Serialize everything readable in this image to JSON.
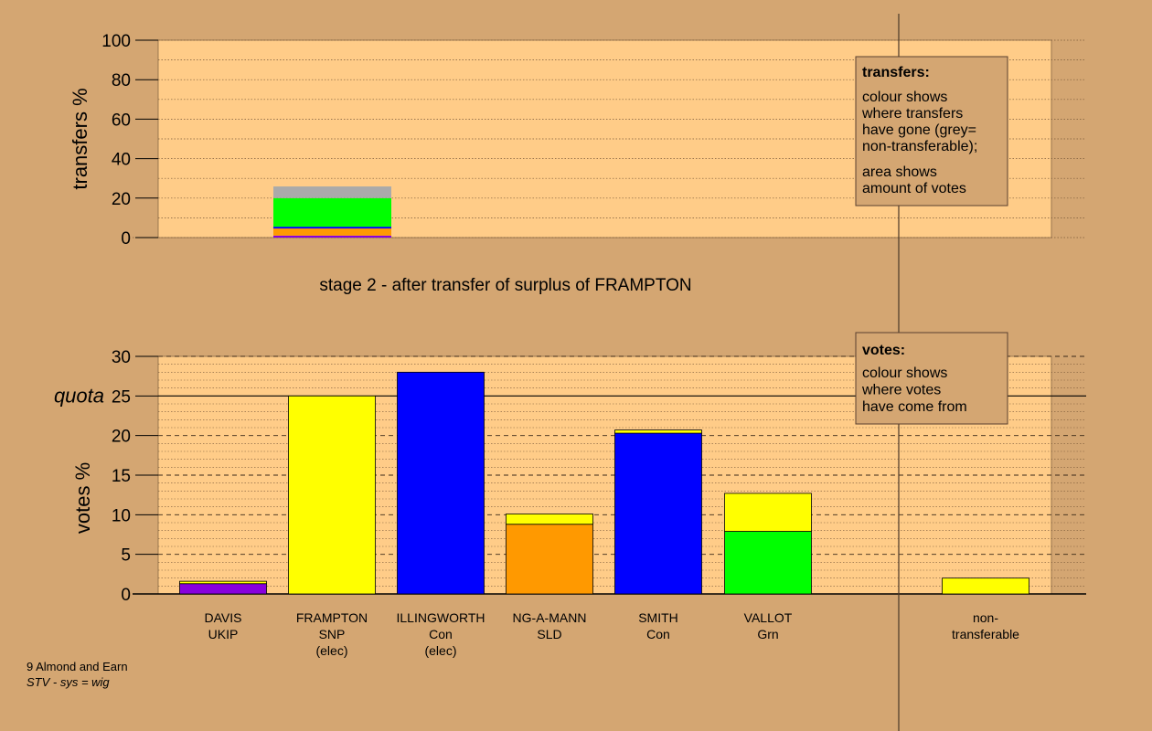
{
  "colors": {
    "background": "#d4a672",
    "panel": "#ffcc88",
    "ukip": "#8800dd",
    "snp": "#ffff00",
    "con": "#0000ff",
    "sld": "#ff9900",
    "grn": "#00ff00",
    "nontransferable": "#aaaaaa"
  },
  "chart_data": [
    {
      "type": "bar",
      "ylabel": "transfers %",
      "ylim": [
        0,
        100
      ],
      "yticks": [
        0,
        20,
        40,
        60,
        80,
        100
      ],
      "grid": "dotted",
      "bars": [
        {
          "segments": [
            {
              "party": "ukip",
              "value": 1.0
            },
            {
              "party": "sld",
              "value": 3.6
            },
            {
              "party": "con",
              "value": 0.9
            },
            {
              "party": "grn",
              "value": 14.5
            },
            {
              "party": "nontransferable",
              "value": 5.9
            }
          ]
        }
      ],
      "legend": {
        "title": "transfers:",
        "lines_1": [
          "colour shows",
          "where transfers",
          "have gone (grey=",
          "non-transferable);"
        ],
        "lines_2": [
          "area shows",
          "amount of votes"
        ]
      }
    },
    {
      "type": "bar",
      "title": "stage 2 - after transfer of surplus of FRAMPTON",
      "ylabel": "votes %",
      "ylim": [
        0,
        30
      ],
      "yticks": [
        0,
        5,
        10,
        15,
        20,
        25,
        30
      ],
      "quota": 25,
      "quota_label": "quota",
      "grid": "dotted",
      "categories": [
        {
          "lines": [
            "DAVIS",
            "UKIP"
          ],
          "segments": [
            {
              "party": "ukip",
              "value": 1.3
            },
            {
              "party": "snp",
              "value": 0.3
            }
          ]
        },
        {
          "lines": [
            "FRAMPTON",
            "SNP",
            "(elec)"
          ],
          "segments": [
            {
              "party": "snp",
              "value": 25.0
            }
          ]
        },
        {
          "lines": [
            "ILLINGWORTH",
            "Con",
            "(elec)"
          ],
          "segments": [
            {
              "party": "con",
              "value": 28.0
            }
          ]
        },
        {
          "lines": [
            "NG-A-MANN",
            "SLD"
          ],
          "segments": [
            {
              "party": "sld",
              "value": 8.8
            },
            {
              "party": "snp",
              "value": 1.3
            }
          ]
        },
        {
          "lines": [
            "SMITH",
            "Con"
          ],
          "segments": [
            {
              "party": "con",
              "value": 20.3
            },
            {
              "party": "snp",
              "value": 0.4
            }
          ]
        },
        {
          "lines": [
            "VALLOT",
            "Grn"
          ],
          "segments": [
            {
              "party": "grn",
              "value": 7.9
            },
            {
              "party": "snp",
              "value": 4.8
            }
          ]
        },
        {
          "lines": [
            "non-",
            "transferable"
          ],
          "segments": [
            {
              "party": "snp",
              "value": 2.0
            }
          ]
        }
      ],
      "legend": {
        "title": "votes:",
        "lines": [
          "colour shows",
          "where votes",
          "have come from"
        ]
      }
    }
  ],
  "footer": {
    "line1": "9 Almond and Earn",
    "line2": "STV - sys = wig"
  }
}
